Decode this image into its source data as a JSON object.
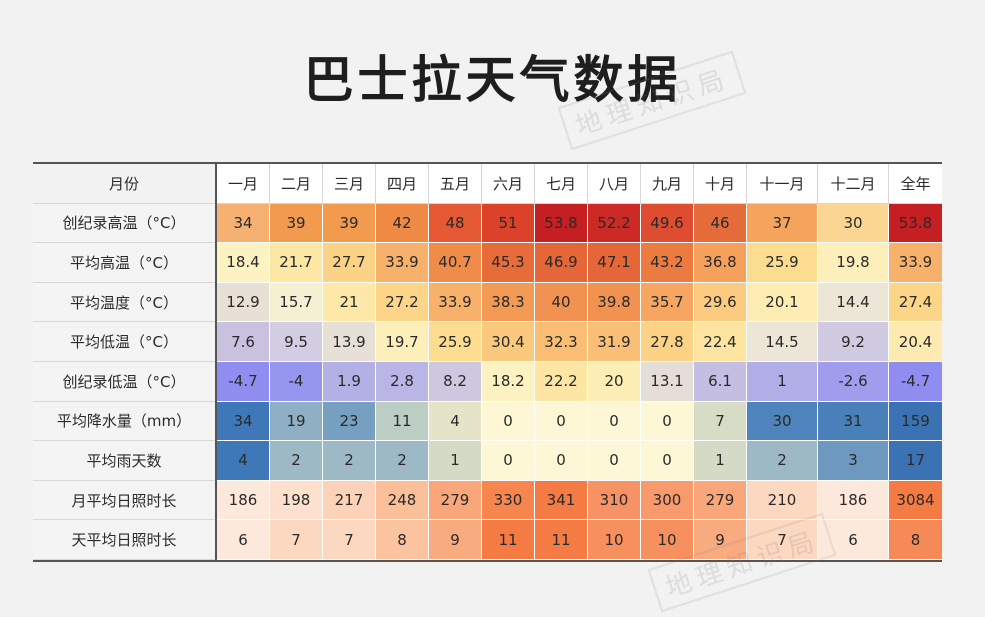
{
  "title": "巴士拉天气数据",
  "watermark": "地理知识局",
  "table": {
    "corner": "月份",
    "columns": [
      "一月",
      "二月",
      "三月",
      "四月",
      "五月",
      "六月",
      "七月",
      "八月",
      "九月",
      "十月",
      "十一月",
      "十二月",
      "全年"
    ],
    "rows": [
      {
        "label": "创纪录高温（°C）",
        "cells": [
          {
            "v": "34",
            "bg": "#f6b071"
          },
          {
            "v": "39",
            "bg": "#f29a4e"
          },
          {
            "v": "39",
            "bg": "#f29a4e"
          },
          {
            "v": "42",
            "bg": "#ee8a44"
          },
          {
            "v": "48",
            "bg": "#e55a35"
          },
          {
            "v": "51",
            "bg": "#dc4229"
          },
          {
            "v": "53.8",
            "bg": "#c51e23"
          },
          {
            "v": "52.2",
            "bg": "#cd2a26"
          },
          {
            "v": "49.6",
            "bg": "#de4d2f"
          },
          {
            "v": "46",
            "bg": "#e66b3b"
          },
          {
            "v": "37",
            "bg": "#f4a45d"
          },
          {
            "v": "30",
            "bg": "#fbd592"
          },
          {
            "v": "53.8",
            "bg": "#c51e23"
          }
        ]
      },
      {
        "label": "平均高温（°C）",
        "cells": [
          {
            "v": "18.4",
            "bg": "#fdf2c1"
          },
          {
            "v": "21.7",
            "bg": "#fde7a5"
          },
          {
            "v": "27.7",
            "bg": "#fcd386"
          },
          {
            "v": "33.9",
            "bg": "#f8b16a"
          },
          {
            "v": "40.7",
            "bg": "#f08c49"
          },
          {
            "v": "45.3",
            "bg": "#e86c3a"
          },
          {
            "v": "46.9",
            "bg": "#e56738"
          },
          {
            "v": "47.1",
            "bg": "#e56637"
          },
          {
            "v": "43.2",
            "bg": "#ec7b41"
          },
          {
            "v": "36.8",
            "bg": "#f5a15c"
          },
          {
            "v": "25.9",
            "bg": "#fcdc8e"
          },
          {
            "v": "19.8",
            "bg": "#fdefb9"
          },
          {
            "v": "33.9",
            "bg": "#f8b16a"
          }
        ]
      },
      {
        "label": "平均温度（°C）",
        "cells": [
          {
            "v": "12.9",
            "bg": "#e6e0d5"
          },
          {
            "v": "15.7",
            "bg": "#f6f0d3"
          },
          {
            "v": "21",
            "bg": "#fde8a8"
          },
          {
            "v": "27.2",
            "bg": "#fcd588"
          },
          {
            "v": "33.9",
            "bg": "#f8b16a"
          },
          {
            "v": "38.3",
            "bg": "#f39a54"
          },
          {
            "v": "40",
            "bg": "#f29250"
          },
          {
            "v": "39.8",
            "bg": "#f29250"
          },
          {
            "v": "35.7",
            "bg": "#f6a660"
          },
          {
            "v": "29.6",
            "bg": "#fccb80"
          },
          {
            "v": "20.1",
            "bg": "#fdedb3"
          },
          {
            "v": "14.4",
            "bg": "#ece6d6"
          },
          {
            "v": "27.4",
            "bg": "#fcd588"
          }
        ]
      },
      {
        "label": "平均低温（°C）",
        "cells": [
          {
            "v": "7.6",
            "bg": "#c8c2df"
          },
          {
            "v": "9.5",
            "bg": "#d2cde2"
          },
          {
            "v": "13.9",
            "bg": "#e6e0d6"
          },
          {
            "v": "19.7",
            "bg": "#fdefb9"
          },
          {
            "v": "25.9",
            "bg": "#fcdc8e"
          },
          {
            "v": "30.4",
            "bg": "#fbc97e"
          },
          {
            "v": "32.3",
            "bg": "#f9bd74"
          },
          {
            "v": "31.9",
            "bg": "#f9bf76"
          },
          {
            "v": "27.8",
            "bg": "#fcd386"
          },
          {
            "v": "22.4",
            "bg": "#fde4a0"
          },
          {
            "v": "14.5",
            "bg": "#ece6d6"
          },
          {
            "v": "9.2",
            "bg": "#d0cbe1"
          },
          {
            "v": "20.4",
            "bg": "#fdeab0"
          }
        ]
      },
      {
        "label": "创纪录低温（°C）",
        "cells": [
          {
            "v": "-4.7",
            "bg": "#8f8ef0"
          },
          {
            "v": "-4",
            "bg": "#9796ef"
          },
          {
            "v": "1.9",
            "bg": "#b3b0e6"
          },
          {
            "v": "2.8",
            "bg": "#b9b6e5"
          },
          {
            "v": "8.2",
            "bg": "#cdc7e0"
          },
          {
            "v": "18.2",
            "bg": "#fdf2c1"
          },
          {
            "v": "22.2",
            "bg": "#fde6a3"
          },
          {
            "v": "20",
            "bg": "#fdeeb5"
          },
          {
            "v": "13.1",
            "bg": "#e4ded6"
          },
          {
            "v": "6.1",
            "bg": "#c3bee2"
          },
          {
            "v": "1",
            "bg": "#b0ade7"
          },
          {
            "v": "-2.6",
            "bg": "#a09eec"
          },
          {
            "v": "-4.7",
            "bg": "#8f8ef0"
          }
        ]
      },
      {
        "label": "平均降水量（mm）",
        "cells": [
          {
            "v": "34",
            "bg": "#3f78b8"
          },
          {
            "v": "19",
            "bg": "#8fb0c4"
          },
          {
            "v": "23",
            "bg": "#769fc0"
          },
          {
            "v": "11",
            "bg": "#bccdc3"
          },
          {
            "v": "4",
            "bg": "#e6e4c8"
          },
          {
            "v": "0",
            "bg": "#fdf7d6"
          },
          {
            "v": "0",
            "bg": "#fdf7d6"
          },
          {
            "v": "0",
            "bg": "#fdf7d6"
          },
          {
            "v": "0",
            "bg": "#fdf7d6"
          },
          {
            "v": "7",
            "bg": "#d6dcc6"
          },
          {
            "v": "30",
            "bg": "#4f83bb"
          },
          {
            "v": "31",
            "bg": "#4a80ba"
          },
          {
            "v": "159",
            "bg": "#3a72b4"
          }
        ]
      },
      {
        "label": "平均雨天数",
        "cells": [
          {
            "v": "4",
            "bg": "#3f78b8"
          },
          {
            "v": "2",
            "bg": "#9db9c6"
          },
          {
            "v": "2",
            "bg": "#9db9c6"
          },
          {
            "v": "2",
            "bg": "#9db9c6"
          },
          {
            "v": "1",
            "bg": "#d3dac6"
          },
          {
            "v": "0",
            "bg": "#fdf7d6"
          },
          {
            "v": "0",
            "bg": "#fdf7d6"
          },
          {
            "v": "0",
            "bg": "#fdf7d6"
          },
          {
            "v": "0",
            "bg": "#fdf7d6"
          },
          {
            "v": "1",
            "bg": "#d3dac6"
          },
          {
            "v": "2",
            "bg": "#9db9c6"
          },
          {
            "v": "3",
            "bg": "#6d98bf"
          },
          {
            "v": "17",
            "bg": "#3a72b4"
          }
        ]
      },
      {
        "label": "月平均日照时长",
        "cells": [
          {
            "v": "186",
            "bg": "#fde9dc"
          },
          {
            "v": "198",
            "bg": "#fde0cd"
          },
          {
            "v": "217",
            "bg": "#fcd3b9"
          },
          {
            "v": "248",
            "bg": "#fbbf9a"
          },
          {
            "v": "279",
            "bg": "#f9a77a"
          },
          {
            "v": "330",
            "bg": "#f6854e"
          },
          {
            "v": "341",
            "bg": "#f47b43"
          },
          {
            "v": "310",
            "bg": "#f79264"
          },
          {
            "v": "300",
            "bg": "#f89a6c"
          },
          {
            "v": "279",
            "bg": "#f9a77a"
          },
          {
            "v": "210",
            "bg": "#fcd8c0"
          },
          {
            "v": "186",
            "bg": "#fde9dc"
          },
          {
            "v": "3084",
            "bg": "#f47b43"
          }
        ]
      },
      {
        "label": "天平均日照时长",
        "cells": [
          {
            "v": "6",
            "bg": "#fde9dc"
          },
          {
            "v": "7",
            "bg": "#fcd8c0"
          },
          {
            "v": "7",
            "bg": "#fcd8c0"
          },
          {
            "v": "8",
            "bg": "#fbc3a0"
          },
          {
            "v": "9",
            "bg": "#f9ab80"
          },
          {
            "v": "11",
            "bg": "#f47b43"
          },
          {
            "v": "11",
            "bg": "#f47b43"
          },
          {
            "v": "10",
            "bg": "#f6905f"
          },
          {
            "v": "10",
            "bg": "#f6905f"
          },
          {
            "v": "9",
            "bg": "#f9ab80"
          },
          {
            "v": "7",
            "bg": "#fcd8c0"
          },
          {
            "v": "6",
            "bg": "#fde9dc"
          },
          {
            "v": "8",
            "bg": "#f68a57"
          }
        ]
      }
    ]
  }
}
